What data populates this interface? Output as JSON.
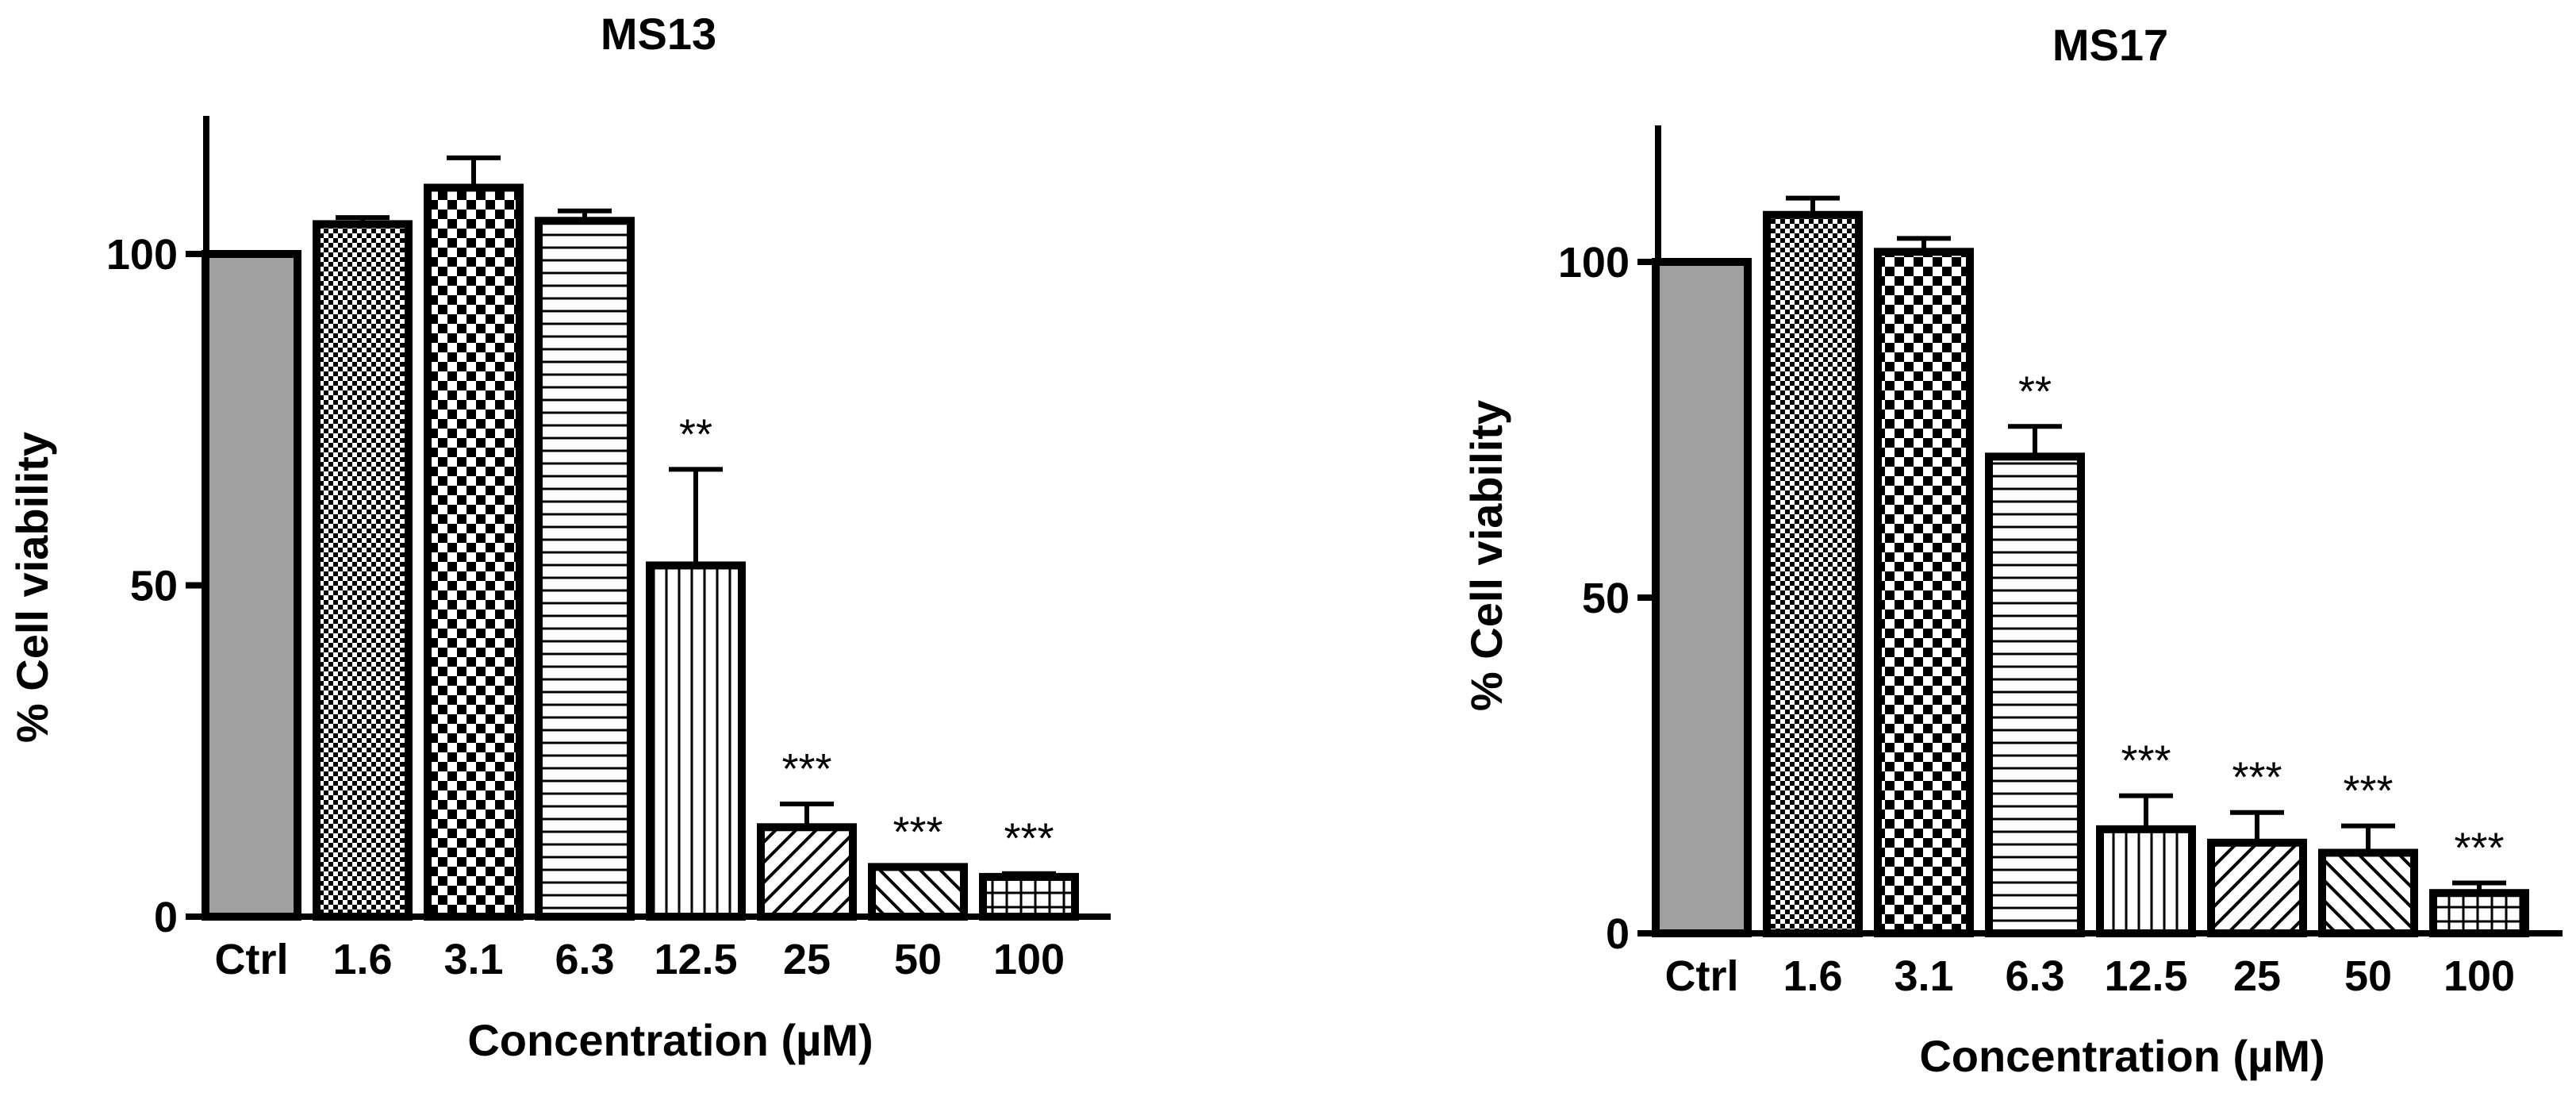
{
  "chart_data": [
    {
      "type": "bar",
      "title": "MS13",
      "xlabel": "Concentration (µM)",
      "ylabel": "% Cell viability",
      "categories": [
        "Ctrl",
        "1.6",
        "3.1",
        "6.3",
        "12.5",
        "25",
        "50",
        "100"
      ],
      "values": [
        100,
        104.5,
        110,
        105,
        53,
        13.5,
        7.5,
        6
      ],
      "error": [
        0,
        1,
        4.5,
        1.5,
        14.5,
        3.5,
        0,
        0.5
      ],
      "significance": [
        "",
        "",
        "",
        "",
        "**",
        "***",
        "***",
        "***"
      ],
      "yticks": [
        0,
        50,
        100
      ],
      "ylim": [
        0,
        120
      ],
      "grid": false,
      "fills": [
        "solid-gray",
        "fine-check",
        "checker",
        "horizontal-lines",
        "vertical-lines",
        "diagonal-up",
        "diagonal-down",
        "grid"
      ]
    },
    {
      "type": "bar",
      "title": "MS17",
      "xlabel": "Concentration (µM)",
      "ylabel": "% Cell viability",
      "categories": [
        "Ctrl",
        "1.6",
        "3.1",
        "6.3",
        "12.5",
        "25",
        "50",
        "100"
      ],
      "values": [
        100,
        107,
        101.5,
        71,
        15.5,
        13.5,
        12,
        6
      ],
      "error": [
        0,
        2.5,
        2,
        4.5,
        5,
        4.5,
        4,
        1.5
      ],
      "significance": [
        "",
        "",
        "",
        "**",
        "***",
        "***",
        "***",
        "***"
      ],
      "yticks": [
        0,
        50,
        100
      ],
      "ylim": [
        0,
        120
      ],
      "grid": false,
      "fills": [
        "solid-gray",
        "fine-check",
        "checker",
        "horizontal-lines",
        "vertical-lines",
        "diagonal-up",
        "diagonal-down",
        "grid"
      ]
    }
  ],
  "colors": {
    "ctrl_fill": "#a0a0a0",
    "stroke": "#000000",
    "background": "#ffffff"
  }
}
